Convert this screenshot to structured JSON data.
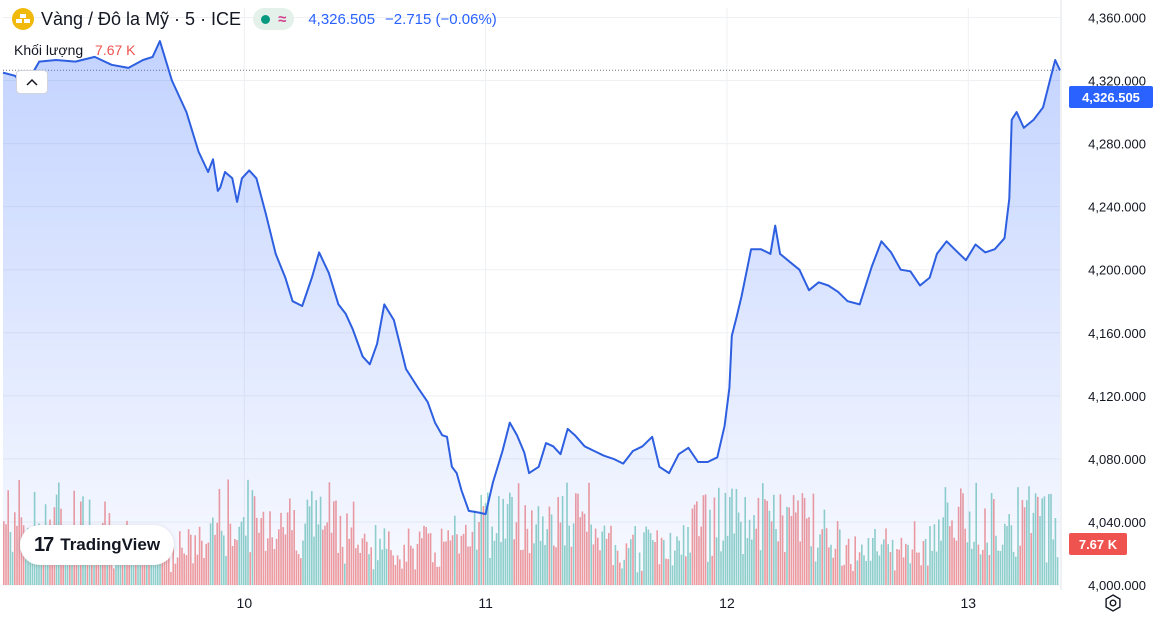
{
  "header": {
    "symbol": "Vàng / Đô la Mỹ · 5 · ICE",
    "approx_icon": "≈",
    "last_price": "4,326.505",
    "change": "−2.715 (−0.06%)",
    "market_status_icon": "market-open-dot"
  },
  "volume_legend": {
    "label": "Khối lượng",
    "value": "7.67 K"
  },
  "badges": {
    "price": "4,326.505",
    "volume": "7.67 K"
  },
  "brand": {
    "name": "TradingView"
  },
  "colors": {
    "line": "#2d5fe0",
    "up_volume": "#7fcbbf",
    "down_volume": "#f28b8b",
    "price_badge": "#2962ff",
    "volume_badge": "#ef5350"
  },
  "chart_data": {
    "type": "area",
    "y_ticks": [
      "4,360.000",
      "4,320.000",
      "4,280.000",
      "4,240.000",
      "4,200.000",
      "4,160.000",
      "4,120.000",
      "4,080.000",
      "4,040.000",
      "4,000.000"
    ],
    "x_ticks": [
      "10",
      "11",
      "12",
      "13"
    ],
    "ylim": [
      4000,
      4366
    ],
    "xlim": [
      9.0,
      13.38
    ],
    "grid": true,
    "last_value": 4326.505,
    "series": [
      {
        "x": [
          9.0,
          9.05,
          9.09,
          9.12,
          9.15,
          9.22,
          9.3,
          9.38,
          9.45,
          9.52,
          9.58,
          9.62,
          9.65,
          9.7,
          9.76,
          9.81,
          9.85,
          9.87,
          9.89,
          9.9,
          9.92,
          9.95,
          9.97,
          9.99,
          10.02,
          10.05,
          10.09,
          10.13,
          10.17,
          10.2,
          10.24,
          10.28,
          10.31,
          10.35,
          10.39,
          10.42,
          10.45,
          10.49,
          10.52,
          10.55,
          10.58,
          10.62,
          10.67,
          10.72,
          10.76,
          10.79,
          10.82,
          10.84,
          10.86,
          10.88,
          10.9,
          10.93,
          10.97,
          11.0,
          11.03,
          11.07,
          11.1,
          11.13,
          11.16,
          11.18,
          11.22,
          11.25,
          11.28,
          11.31,
          11.34,
          11.37,
          11.41,
          11.45,
          11.49,
          11.53,
          11.57,
          11.61,
          11.65,
          11.69,
          11.72,
          11.76,
          11.8,
          11.84,
          11.88,
          11.92,
          11.96,
          11.99,
          12.01,
          12.02,
          12.04,
          12.06,
          12.08,
          12.1,
          12.14,
          12.18,
          12.2,
          12.22,
          12.26,
          12.3,
          12.34,
          12.38,
          12.42,
          12.46,
          12.5,
          12.55,
          12.6,
          12.64,
          12.68,
          12.72,
          12.76,
          12.8,
          12.84,
          12.87,
          12.91,
          12.95,
          12.99,
          13.03,
          13.07,
          13.11,
          13.15,
          13.17,
          13.18,
          13.2,
          13.23,
          13.27,
          13.31,
          13.34,
          13.36,
          13.38
        ],
        "y": [
          4325,
          4323,
          4316,
          4324,
          4332,
          4333,
          4332,
          4335,
          4330,
          4328,
          4333,
          4335,
          4345,
          4320,
          4300,
          4275,
          4262,
          4270,
          4250,
          4252,
          4262,
          4258,
          4243,
          4258,
          4263,
          4258,
          4235,
          4210,
          4195,
          4180,
          4177,
          4195,
          4211,
          4198,
          4178,
          4172,
          4162,
          4145,
          4140,
          4153,
          4178,
          4168,
          4137,
          4125,
          4116,
          4103,
          4095,
          4094,
          4075,
          4071,
          4060,
          4047,
          4046,
          4045,
          4065,
          4085,
          4103,
          4095,
          4084,
          4071,
          4075,
          4090,
          4088,
          4083,
          4099,
          4095,
          4088,
          4085,
          4082,
          4080,
          4077,
          4085,
          4088,
          4094,
          4075,
          4071,
          4083,
          4087,
          4078,
          4078,
          4081,
          4101,
          4125,
          4158,
          4170,
          4183,
          4198,
          4213,
          4213,
          4210,
          4228,
          4210,
          4205,
          4200,
          4187,
          4192,
          4190,
          4186,
          4180,
          4178,
          4202,
          4218,
          4211,
          4200,
          4199,
          4190,
          4195,
          4210,
          4218,
          4212,
          4206,
          4216,
          4211,
          4213,
          4220,
          4245,
          4295,
          4300,
          4290,
          4295,
          4303,
          4321,
          4333,
          4326.505
        ]
      }
    ],
    "volume": {
      "label": "Khối lượng",
      "last": "7.67 K"
    }
  }
}
